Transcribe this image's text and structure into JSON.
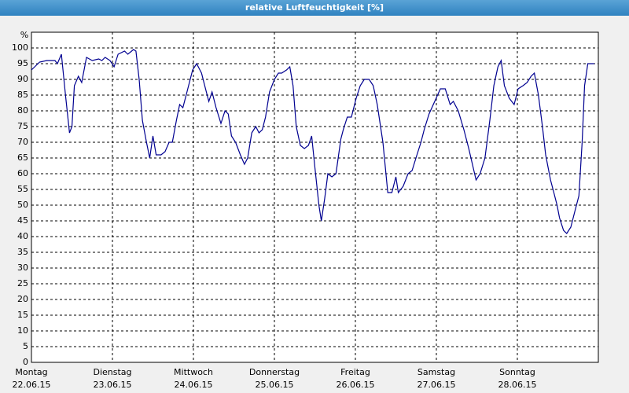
{
  "chart_data": {
    "type": "line",
    "title": "relative Luftfeuchtigkeit [%]",
    "y_unit": "%",
    "xlim": [
      0,
      7
    ],
    "ylim": [
      0,
      105
    ],
    "xticks": [
      {
        "value": 0,
        "label": "Montag"
      },
      {
        "value": 1,
        "label": "Dienstag"
      },
      {
        "value": 2,
        "label": "Mittwoch"
      },
      {
        "value": 3,
        "label": "Donnerstag"
      },
      {
        "value": 4,
        "label": "Freitag"
      },
      {
        "value": 5,
        "label": "Samstag"
      },
      {
        "value": 6,
        "label": "Sonntag"
      }
    ],
    "xtick_dates": [
      "22.06.15",
      "23.06.15",
      "24.06.15",
      "25.06.15",
      "26.06.15",
      "27.06.15",
      "28.06.15"
    ],
    "yticks": [
      0,
      5,
      10,
      15,
      20,
      25,
      30,
      35,
      40,
      45,
      50,
      55,
      60,
      65,
      70,
      75,
      80,
      85,
      90,
      95,
      100
    ],
    "grid": true,
    "series": [
      {
        "color": "#000090",
        "x": [
          0,
          0.1,
          0.19,
          0.29,
          0.32,
          0.37,
          0.42,
          0.47,
          0.5,
          0.53,
          0.58,
          0.62,
          0.68,
          0.75,
          0.83,
          0.87,
          0.91,
          0.97,
          1.02,
          1.07,
          1.15,
          1.19,
          1.26,
          1.29,
          1.33,
          1.37,
          1.42,
          1.46,
          1.5,
          1.54,
          1.6,
          1.65,
          1.7,
          1.74,
          1.79,
          1.83,
          1.87,
          1.92,
          1.99,
          2.04,
          2.1,
          2.15,
          2.19,
          2.23,
          2.28,
          2.34,
          2.39,
          2.43,
          2.47,
          2.52,
          2.58,
          2.63,
          2.67,
          2.72,
          2.77,
          2.81,
          2.85,
          2.89,
          2.94,
          3.0,
          3.05,
          3.09,
          3.15,
          3.19,
          3.23,
          3.27,
          3.32,
          3.37,
          3.42,
          3.46,
          3.5,
          3.55,
          3.58,
          3.62,
          3.66,
          3.71,
          3.76,
          3.82,
          3.85,
          3.9,
          3.95,
          4.01,
          4.06,
          4.11,
          4.17,
          4.22,
          4.27,
          4.34,
          4.4,
          4.45,
          4.5,
          4.53,
          4.59,
          4.65,
          4.7,
          4.76,
          4.81,
          4.85,
          4.91,
          4.98,
          5.05,
          5.11,
          5.17,
          5.21,
          5.27,
          5.34,
          5.4,
          5.49,
          5.54,
          5.6,
          5.66,
          5.71,
          5.76,
          5.8,
          5.84,
          5.9,
          5.96,
          6.01,
          6.07,
          6.12,
          6.17,
          6.21,
          6.26,
          6.31,
          6.35,
          6.41,
          6.45,
          6.49,
          6.52,
          6.57,
          6.61,
          6.66,
          6.71,
          6.76,
          6.8,
          6.83,
          6.87,
          6.91,
          6.95
        ],
        "values": [
          93,
          95.5,
          96,
          96,
          95,
          98,
          85,
          73,
          75,
          88,
          91,
          89,
          97,
          96,
          96.5,
          96,
          97,
          96,
          94,
          98,
          99,
          98,
          99.5,
          99,
          90,
          77,
          70,
          65,
          72,
          66,
          66,
          67,
          70,
          70,
          77,
          82,
          81,
          86,
          93,
          95,
          92,
          87,
          83,
          86,
          81,
          76,
          80,
          79,
          72,
          70,
          66,
          63,
          65,
          73,
          75,
          73,
          74,
          78,
          86,
          90,
          92,
          92,
          93,
          94,
          88,
          75,
          69,
          68,
          69,
          72,
          62,
          50,
          45,
          52,
          60,
          59,
          60,
          71,
          74,
          78,
          78,
          84,
          88,
          90,
          90,
          88,
          82,
          70,
          54,
          54,
          59,
          54,
          56,
          60,
          61,
          66,
          70,
          74,
          79,
          83,
          87,
          87,
          82,
          83,
          80,
          74,
          68,
          58,
          60,
          65,
          77,
          88,
          94,
          96,
          88,
          84,
          82,
          87,
          88,
          89,
          91,
          92,
          85,
          75,
          66,
          58,
          54,
          50,
          46,
          42,
          41,
          43,
          48,
          53,
          70,
          88,
          95,
          95,
          95
        ]
      }
    ]
  }
}
